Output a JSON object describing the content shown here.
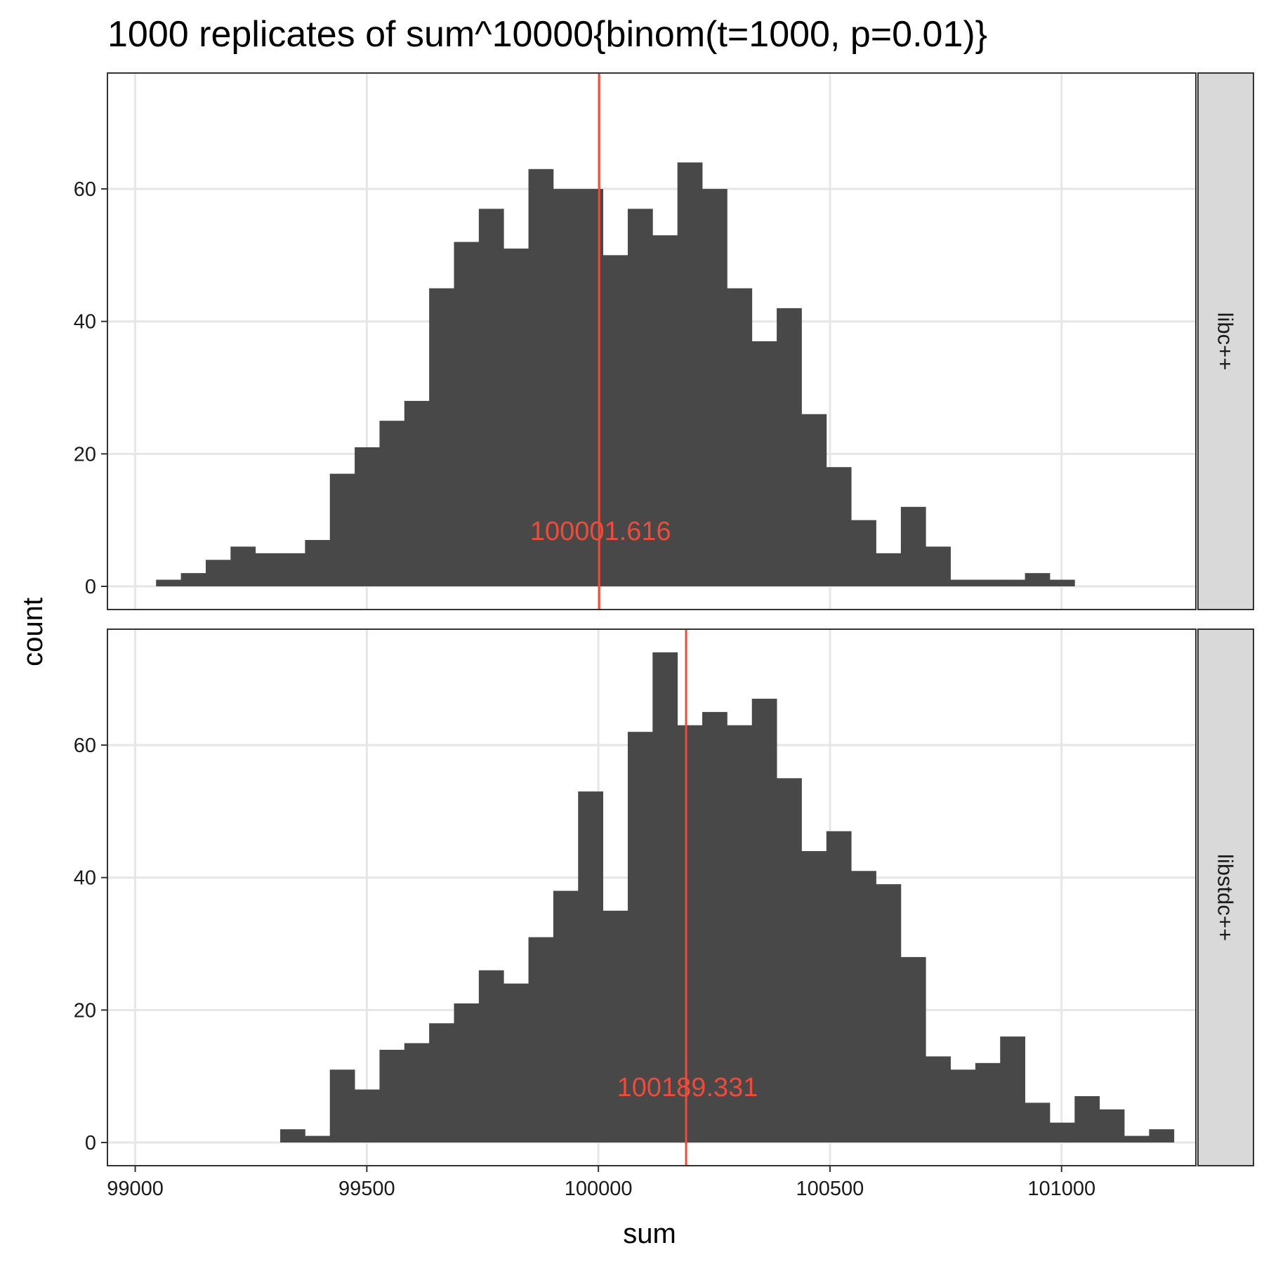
{
  "chart_data": {
    "type": "bar",
    "title": "1000 replicates of sum^10000{binom(t=1000, p=0.01)}",
    "xlabel": "sum",
    "ylabel": "count",
    "xlim": [
      98940,
      101290
    ],
    "ylim": [
      -3.5,
      77.5
    ],
    "x_ticks": [
      99000,
      99500,
      100000,
      100500,
      101000
    ],
    "y_ticks": [
      0,
      20,
      40,
      60
    ],
    "grid": true,
    "bin_width": 53.6,
    "bar_color": "#484848",
    "mean_line_color": "#ef4b3a",
    "panels": [
      {
        "facet": "libc++",
        "bins_start": 99045,
        "counts": [
          1,
          2,
          4,
          6,
          5,
          5,
          7,
          17,
          21,
          25,
          28,
          45,
          52,
          57,
          51,
          63,
          60,
          60,
          50,
          57,
          53,
          64,
          60,
          45,
          37,
          42,
          26,
          18,
          10,
          5,
          12,
          6,
          1,
          1,
          1,
          2,
          1
        ],
        "mean": 100001.616,
        "mean_label": "100001.616"
      },
      {
        "facet": "libstdc++",
        "bins_start": 99313,
        "counts": [
          2,
          1,
          11,
          8,
          14,
          15,
          18,
          21,
          26,
          24,
          31,
          38,
          53,
          35,
          62,
          74,
          63,
          65,
          63,
          67,
          55,
          44,
          47,
          41,
          39,
          28,
          13,
          11,
          12,
          16,
          6,
          3,
          7,
          5,
          1,
          2
        ],
        "mean": 100189.331,
        "mean_label": "100189.331"
      }
    ]
  }
}
